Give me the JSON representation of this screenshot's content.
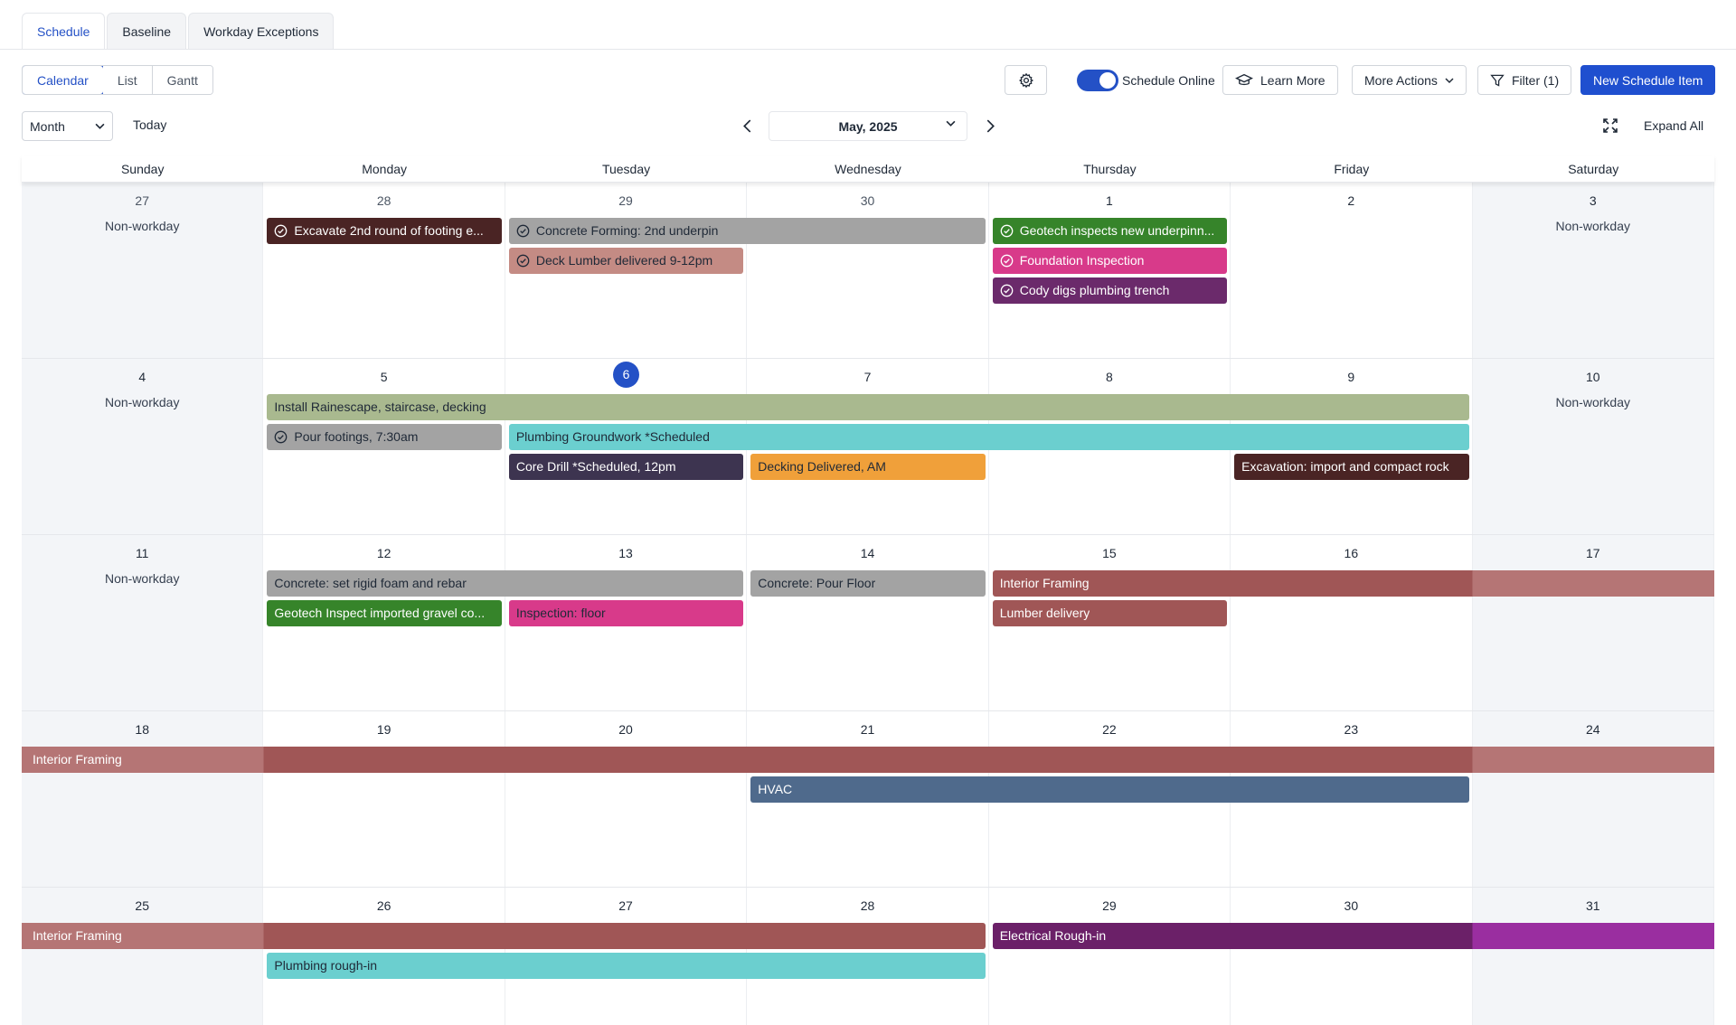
{
  "tabs": [
    {
      "label": "Schedule",
      "active": true
    },
    {
      "label": "Baseline",
      "active": false
    },
    {
      "label": "Workday Exceptions",
      "active": false
    }
  ],
  "view_modes": [
    {
      "label": "Calendar",
      "active": true
    },
    {
      "label": "List",
      "active": false
    },
    {
      "label": "Gantt",
      "active": false
    }
  ],
  "toolbar": {
    "settings_icon": "gear-icon",
    "schedule_online_label": "Schedule Online",
    "schedule_online_on": true,
    "learn_more_label": "Learn More",
    "more_actions_label": "More Actions",
    "filter_label": "Filter (1)",
    "new_item_label": "New Schedule Item"
  },
  "nav": {
    "range_value": "Month",
    "today_label": "Today",
    "current_month": "May, 2025",
    "expand_all_label": "Expand All"
  },
  "colors": {
    "accent": "#2451c6",
    "weekend_bg": "#f3f5f8"
  },
  "calendar": {
    "weekdays": [
      "Sunday",
      "Monday",
      "Tuesday",
      "Wednesday",
      "Thursday",
      "Friday",
      "Saturday"
    ],
    "today": "6",
    "nonworkday_label": "Non-workday",
    "weeks": [
      {
        "days": [
          "27",
          "28",
          "29",
          "30",
          "1",
          "2",
          "3"
        ],
        "prev_month_days": 4,
        "nonworkdays": [
          0,
          6
        ],
        "events": [
          {
            "title": "Excavate 2nd round of footing e...",
            "start": 1,
            "span": 1,
            "lane": 0,
            "color": "#4a2424",
            "completed": true
          },
          {
            "title": "Concrete Forming: 2nd underpin",
            "start": 2,
            "span": 2,
            "lane": 0,
            "color": "#a3a3a3",
            "completed": true,
            "dark": true
          },
          {
            "title": "Deck Lumber delivered 9-12pm",
            "start": 2,
            "span": 1,
            "lane": 1,
            "color": "#c48b84",
            "completed": true,
            "dark": true
          },
          {
            "title": "Geotech inspects new underpinn...",
            "start": 4,
            "span": 1,
            "lane": 0,
            "color": "#36842a",
            "completed": true
          },
          {
            "title": "Foundation Inspection",
            "start": 4,
            "span": 1,
            "lane": 1,
            "color": "#d83a8a",
            "completed": true
          },
          {
            "title": "Cody digs plumbing trench",
            "start": 4,
            "span": 1,
            "lane": 2,
            "color": "#6b2a6b",
            "completed": true
          }
        ]
      },
      {
        "days": [
          "4",
          "5",
          "6",
          "7",
          "8",
          "9",
          "10"
        ],
        "prev_month_days": 0,
        "nonworkdays": [
          0,
          6
        ],
        "events": [
          {
            "title": "Install Rainescape, staircase, decking",
            "start": 1,
            "span": 5,
            "lane": 0,
            "color": "#a9b98f",
            "dark": true
          },
          {
            "title": "Pour footings, 7:30am",
            "start": 1,
            "span": 1,
            "lane": 1,
            "color": "#a3a3a3",
            "completed": true,
            "dark": true
          },
          {
            "title": "Plumbing Groundwork *Scheduled",
            "start": 2,
            "span": 4,
            "lane": 1,
            "color": "#6bcfcf",
            "dark": true
          },
          {
            "title": "Core Drill *Scheduled, 12pm",
            "start": 2,
            "span": 1,
            "lane": 2,
            "color": "#3d3450"
          },
          {
            "title": "Decking Delivered, AM",
            "start": 3,
            "span": 1,
            "lane": 2,
            "color": "#f0a03a",
            "dark": true
          },
          {
            "title": "Excavation: import and compact rock",
            "start": 5,
            "span": 1,
            "lane": 2,
            "color": "#4a2424"
          }
        ]
      },
      {
        "days": [
          "11",
          "12",
          "13",
          "14",
          "15",
          "16",
          "17"
        ],
        "prev_month_days": 0,
        "nonworkdays": [
          0
        ],
        "events": [
          {
            "title": "Concrete: set rigid foam and rebar",
            "start": 1,
            "span": 2,
            "lane": 0,
            "color": "#a3a3a3",
            "dark": true
          },
          {
            "title": "Geotech Inspect imported gravel co...",
            "start": 1,
            "span": 1,
            "lane": 1,
            "color": "#36842a"
          },
          {
            "title": "Inspection: floor",
            "start": 2,
            "span": 1,
            "lane": 1,
            "color": "#d83a8a",
            "dark": true
          },
          {
            "title": "Concrete: Pour Floor",
            "start": 3,
            "span": 1,
            "lane": 0,
            "color": "#a3a3a3",
            "dark": true
          },
          {
            "title": "Interior Framing",
            "start": 4,
            "span": 3,
            "lane": 0,
            "color": "#a05656",
            "weekend_tint": "#b57575",
            "flat_right": true
          },
          {
            "title": "Lumber delivery",
            "start": 4,
            "span": 1,
            "lane": 1,
            "color": "#a05656"
          }
        ]
      },
      {
        "days": [
          "18",
          "19",
          "20",
          "21",
          "22",
          "23",
          "24"
        ],
        "prev_month_days": 0,
        "nonworkdays": [],
        "events": [
          {
            "title": "Interior Framing",
            "start": 0,
            "span": 7,
            "lane": 0,
            "color": "#a05656",
            "weekend_tint": "#b57575",
            "flat_left": true,
            "flat_right": true
          },
          {
            "title": "HVAC",
            "start": 3,
            "span": 3,
            "lane": 1,
            "color": "#4f6a8c"
          }
        ]
      },
      {
        "days": [
          "25",
          "26",
          "27",
          "28",
          "29",
          "30",
          "31"
        ],
        "prev_month_days": 0,
        "nonworkdays": [],
        "events": [
          {
            "title": "Interior Framing",
            "start": 0,
            "span": 4,
            "lane": 0,
            "color": "#a05656",
            "weekend_tint": "#b57575",
            "flat_left": true
          },
          {
            "title": "Electrical Rough-in",
            "start": 4,
            "span": 3,
            "lane": 0,
            "color": "#6b2068",
            "weekend_tint": "#9a2ea0",
            "flat_right": true
          },
          {
            "title": "Plumbing rough-in",
            "start": 1,
            "span": 3,
            "lane": 1,
            "color": "#6bcfcf",
            "dark": true
          }
        ]
      }
    ]
  }
}
